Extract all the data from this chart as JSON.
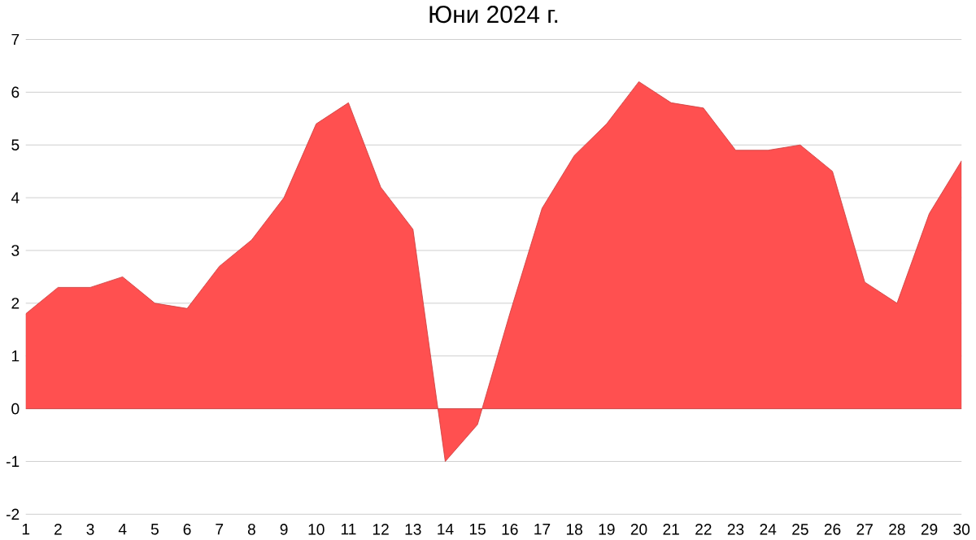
{
  "chart_data": {
    "type": "area",
    "title": "Юни 2024 г.",
    "x": [
      1,
      2,
      3,
      4,
      5,
      6,
      7,
      8,
      9,
      10,
      11,
      12,
      13,
      14,
      15,
      16,
      17,
      18,
      19,
      20,
      21,
      22,
      23,
      24,
      25,
      26,
      27,
      28,
      29,
      30
    ],
    "values": [
      1.8,
      2.3,
      2.3,
      2.5,
      2.0,
      1.9,
      2.7,
      3.2,
      4.0,
      5.4,
      5.8,
      4.2,
      3.4,
      -1.0,
      -0.3,
      1.8,
      3.8,
      4.8,
      5.4,
      6.2,
      5.8,
      5.7,
      4.9,
      4.9,
      5.0,
      4.5,
      2.4,
      2.0,
      3.7,
      4.7
    ],
    "color": "#ff5050",
    "xlim": [
      1,
      30
    ],
    "xticks": [
      1,
      2,
      3,
      4,
      5,
      6,
      7,
      8,
      9,
      10,
      11,
      12,
      13,
      14,
      15,
      16,
      17,
      18,
      19,
      20,
      21,
      22,
      23,
      24,
      25,
      26,
      27,
      28,
      29,
      30
    ],
    "ylim": [
      -2,
      7
    ],
    "yticks": [
      -2,
      -1,
      0,
      1,
      2,
      3,
      4,
      5,
      6,
      7
    ],
    "grid": "y"
  }
}
